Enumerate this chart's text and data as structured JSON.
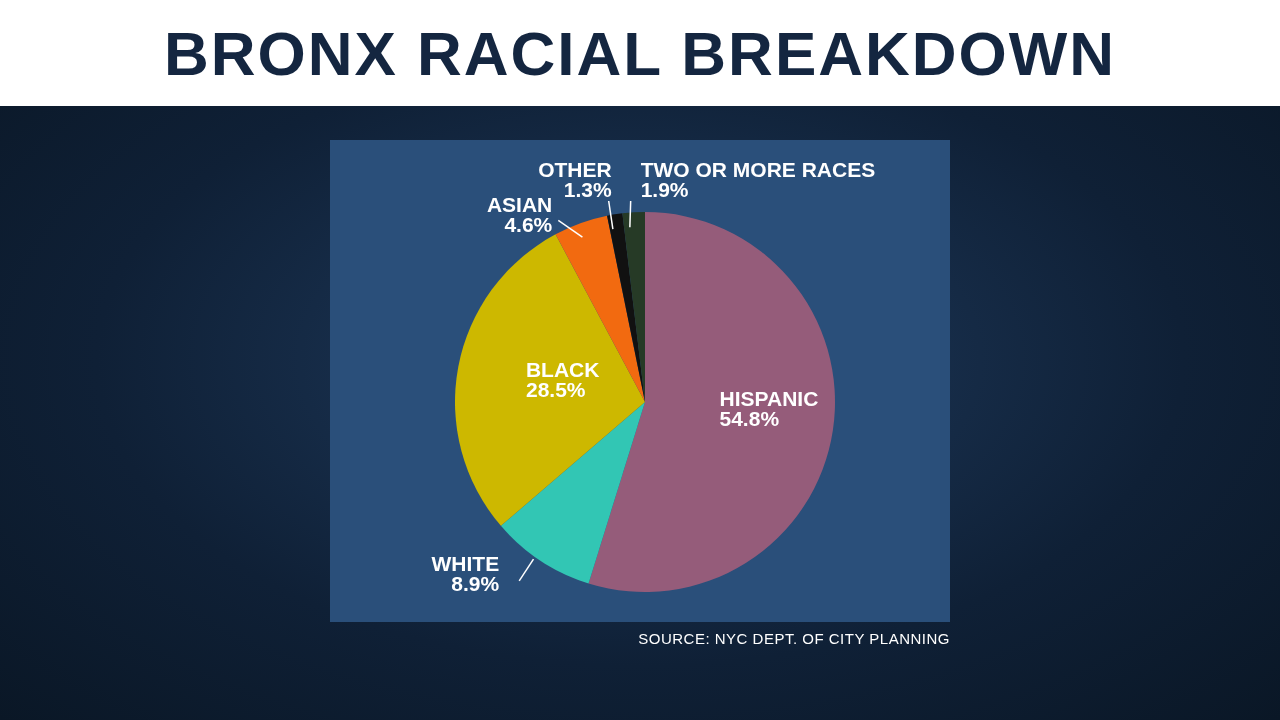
{
  "chart_data": {
    "type": "pie",
    "title": "BRONX RACIAL BREAKDOWN",
    "categories": [
      "HISPANIC",
      "WHITE",
      "BLACK",
      "ASIAN",
      "OTHER",
      "TWO OR MORE RACES"
    ],
    "values": [
      54.8,
      8.9,
      28.5,
      4.6,
      1.3,
      1.9
    ],
    "colors": [
      "#955c7a",
      "#32c6b4",
      "#cdb800",
      "#f26a10",
      "#111111",
      "#263a26"
    ],
    "value_labels": [
      "54.8%",
      "8.9%",
      "28.5%",
      "4.6%",
      "1.3%",
      "1.9%"
    ],
    "annotations": [
      "SOURCE: NYC DEPT. OF CITY PLANNING"
    ]
  }
}
